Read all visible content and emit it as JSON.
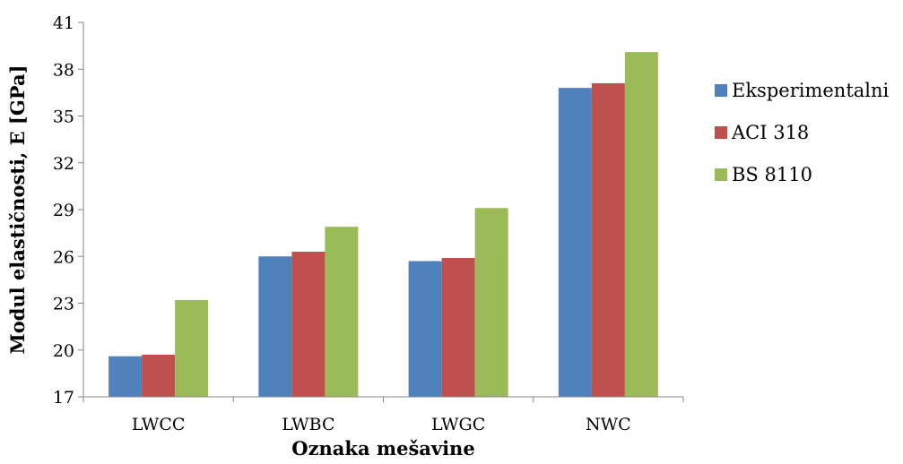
{
  "chart_data": {
    "type": "bar",
    "title": "",
    "xlabel": "Oznaka mešavine",
    "ylabel": "Modul elastičnosti, E [GPa]",
    "categories": [
      "LWCC",
      "LWBC",
      "LWGC",
      "NWC"
    ],
    "ylim": [
      17,
      41
    ],
    "yticks": [
      17,
      20,
      23,
      26,
      29,
      32,
      35,
      38,
      41
    ],
    "grid": false,
    "legend_position": "right",
    "series": [
      {
        "name": "Eksperimentalni",
        "color": "#4f81bd",
        "values": [
          19.6,
          26.0,
          25.7,
          36.8
        ]
      },
      {
        "name": "ACI 318",
        "color": "#c0504d",
        "values": [
          19.7,
          26.3,
          25.9,
          37.1
        ]
      },
      {
        "name": "BS 8110",
        "color": "#9bbb59",
        "values": [
          23.2,
          27.9,
          29.1,
          39.1
        ]
      }
    ]
  }
}
